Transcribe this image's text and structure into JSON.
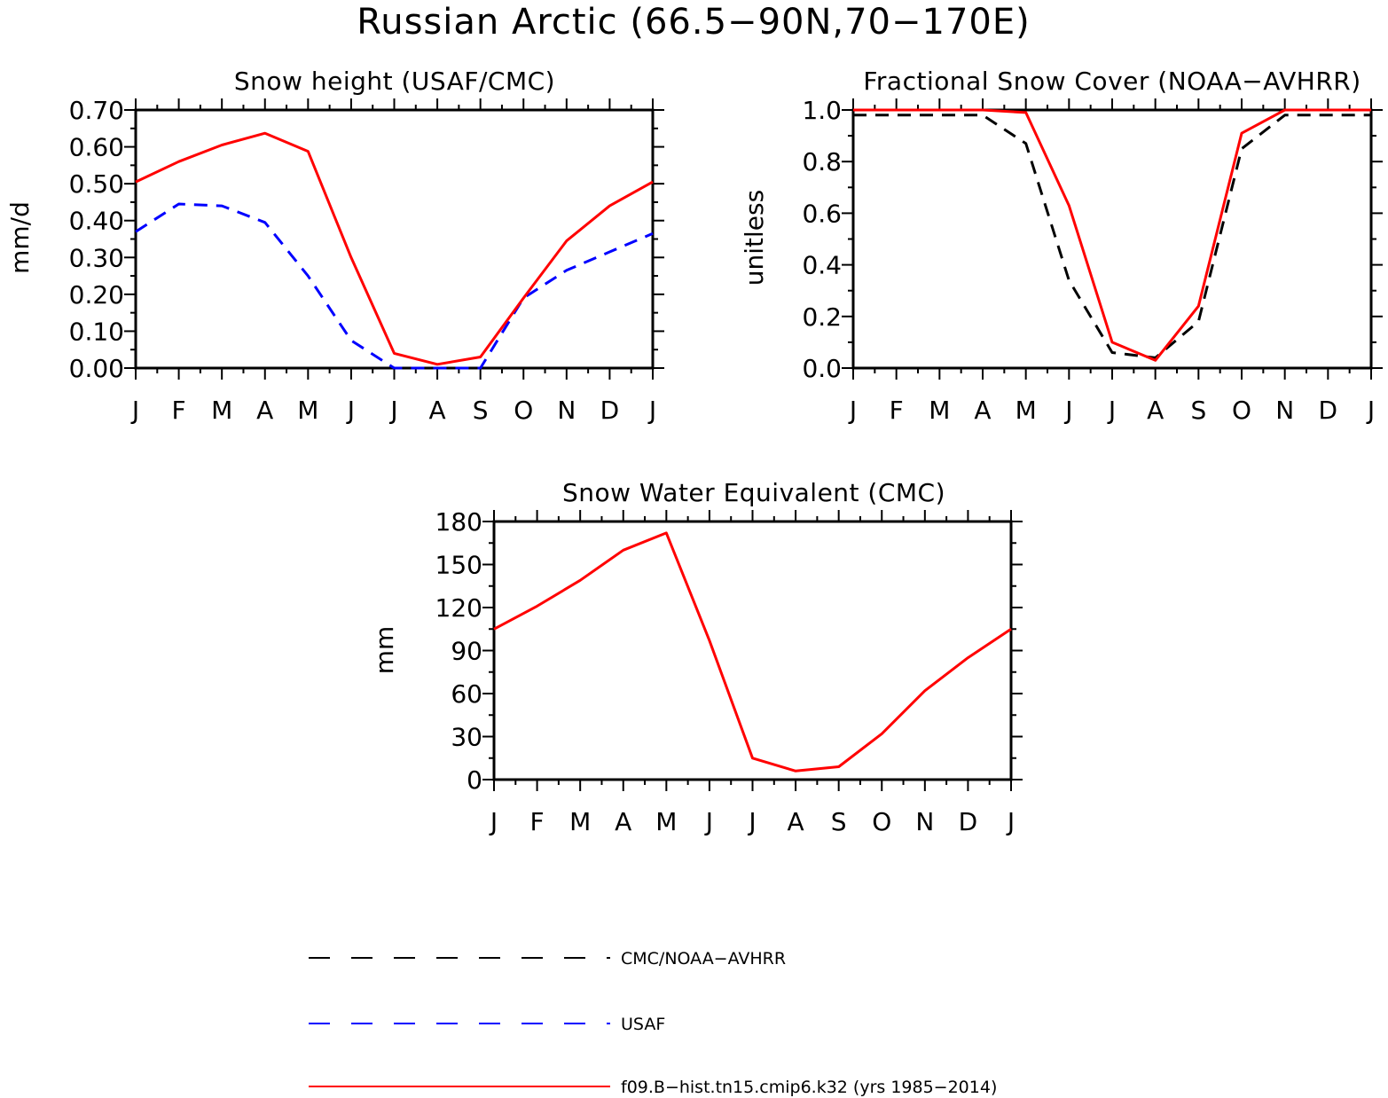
{
  "title": "Russian Arctic (66.5−90N,70−170E)",
  "colors": {
    "model": "#ff0000",
    "usaf": "#0000ff",
    "obs": "#000000"
  },
  "chart_data": [
    {
      "type": "line",
      "title": "Snow height (USAF/CMC)",
      "ylabel": "mm/d",
      "xlabel": "",
      "categories": [
        "J",
        "F",
        "M",
        "A",
        "M",
        "J",
        "J",
        "A",
        "S",
        "O",
        "N",
        "D",
        "J"
      ],
      "ylim": [
        0,
        0.7
      ],
      "yticks": [
        "0.00",
        "0.10",
        "0.20",
        "0.30",
        "0.40",
        "0.50",
        "0.60",
        "0.70"
      ],
      "series": [
        {
          "name": "CMC/NOAA-AVHRR",
          "style": "dashed",
          "color": "#000000",
          "values": [
            0,
            0,
            0,
            0,
            0,
            0,
            0,
            0,
            0,
            0,
            0,
            0,
            0
          ]
        },
        {
          "name": "USAF",
          "style": "dashed",
          "color": "#0000ff",
          "values": [
            0.37,
            0.445,
            0.44,
            0.395,
            0.25,
            0.075,
            0.0,
            0.0,
            0.0,
            0.19,
            0.265,
            0.315,
            0.365
          ]
        },
        {
          "name": "f09.B−hist.tn15.cmip6.k32 (yrs 1985−2014)",
          "style": "solid",
          "color": "#ff0000",
          "values": [
            0.505,
            0.56,
            0.605,
            0.637,
            0.588,
            0.3,
            0.04,
            0.01,
            0.03,
            0.19,
            0.345,
            0.44,
            0.505
          ]
        }
      ]
    },
    {
      "type": "line",
      "title": "Fractional Snow Cover (NOAA−AVHRR)",
      "ylabel": "unitless",
      "xlabel": "",
      "categories": [
        "J",
        "F",
        "M",
        "A",
        "M",
        "J",
        "J",
        "A",
        "S",
        "O",
        "N",
        "D",
        "J"
      ],
      "ylim": [
        0,
        1
      ],
      "yticks": [
        "0.0",
        "0.2",
        "0.4",
        "0.6",
        "0.8",
        "1.0"
      ],
      "series": [
        {
          "name": "CMC/NOAA-AVHRR",
          "style": "dashed",
          "color": "#000000",
          "values": [
            0.98,
            0.98,
            0.98,
            0.98,
            0.87,
            0.34,
            0.06,
            0.04,
            0.18,
            0.85,
            0.98,
            0.98,
            0.98
          ]
        },
        {
          "name": "f09.B−hist.tn15.cmip6.k32 (yrs 1985−2014)",
          "style": "solid",
          "color": "#ff0000",
          "values": [
            1.0,
            1.0,
            1.0,
            1.0,
            0.99,
            0.63,
            0.1,
            0.03,
            0.24,
            0.91,
            1.0,
            1.0,
            1.0
          ]
        }
      ]
    },
    {
      "type": "line",
      "title": "Snow Water Equivalent (CMC)",
      "ylabel": "mm",
      "xlabel": "",
      "categories": [
        "J",
        "F",
        "M",
        "A",
        "M",
        "J",
        "J",
        "A",
        "S",
        "O",
        "N",
        "D",
        "J"
      ],
      "ylim": [
        0,
        180
      ],
      "yticks": [
        "0",
        "30",
        "60",
        "90",
        "120",
        "150",
        "180"
      ],
      "series": [
        {
          "name": "CMC/NOAA-AVHRR",
          "style": "dashed",
          "color": "#000000",
          "values": [
            0,
            0,
            0,
            0,
            0,
            0,
            0,
            0,
            0,
            0,
            0,
            0,
            0
          ]
        },
        {
          "name": "f09.B−hist.tn15.cmip6.k32 (yrs 1985−2014)",
          "style": "solid",
          "color": "#ff0000",
          "values": [
            105,
            121,
            139,
            160,
            172,
            97,
            15,
            6,
            9,
            32,
            62,
            85,
            105
          ]
        }
      ]
    }
  ],
  "legend": [
    {
      "label": "CMC/NOAA−AVHRR",
      "style": "dashed",
      "color": "#000000"
    },
    {
      "label": "USAF",
      "style": "dashed",
      "color": "#0000ff"
    },
    {
      "label": "f09.B−hist.tn15.cmip6.k32 (yrs 1985−2014)",
      "style": "solid",
      "color": "#ff0000"
    }
  ]
}
